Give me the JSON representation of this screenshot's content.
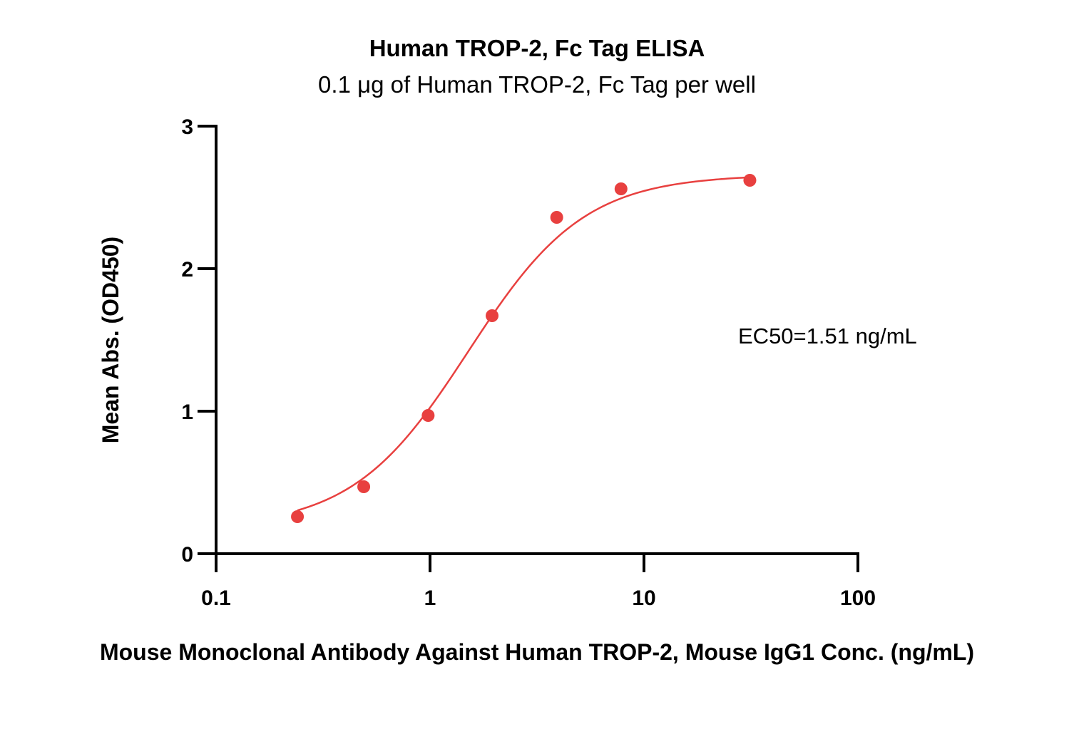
{
  "chart_data": {
    "type": "scatter",
    "title": "Human TROP-2, Fc Tag ELISA",
    "subtitle": "0.1 μg of Human TROP-2, Fc Tag per well",
    "xlabel": "Mouse Monoclonal Antibody Against Human TROP-2, Mouse IgG1 Conc. (ng/mL)",
    "ylabel": "Mean Abs. (OD450)",
    "x_scale": "log",
    "xlim": [
      0.1,
      100
    ],
    "ylim": [
      0,
      3
    ],
    "x_ticks": [
      "0.1",
      "1",
      "10",
      "100"
    ],
    "y_ticks": [
      "0",
      "1",
      "2",
      "3"
    ],
    "grid": false,
    "annotation": "EC50=1.51 ng/mL",
    "color": "#e8403f",
    "series": [
      {
        "x": [
          0.24,
          0.49,
          0.98,
          1.95,
          3.91,
          7.81,
          31.25
        ],
        "y": [
          0.26,
          0.47,
          0.97,
          1.67,
          2.36,
          2.56,
          2.62
        ]
      }
    ],
    "fit": {
      "model": "4PL",
      "bottom": 0.18,
      "top": 2.66,
      "ec50": 1.51,
      "hill": 1.6
    }
  }
}
